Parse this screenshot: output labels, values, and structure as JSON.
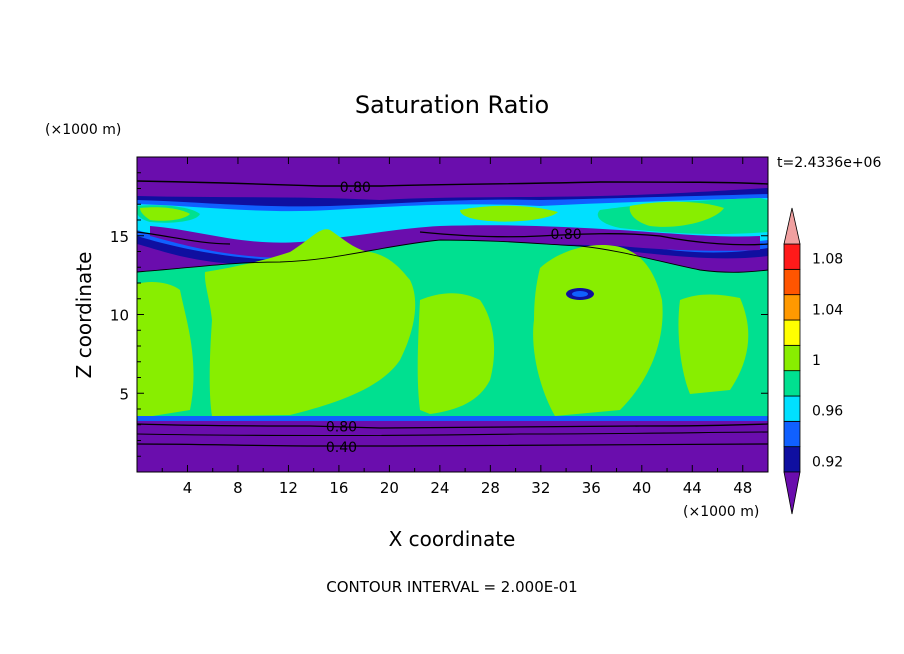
{
  "chart_data": {
    "type": "heatmap",
    "title": "Saturation Ratio",
    "xlabel": "X coordinate",
    "ylabel": "Z coordinate",
    "x_unit": "(×1000 m)",
    "y_unit": "(×1000 m)",
    "xlim": [
      0,
      50
    ],
    "ylim": [
      0,
      20
    ],
    "x_ticks": [
      4,
      8,
      12,
      16,
      20,
      24,
      28,
      32,
      36,
      40,
      44,
      48
    ],
    "y_ticks": [
      5,
      10,
      15
    ],
    "time_label": "t=2.4336e+06",
    "footer": "CONTOUR INTERVAL = 2.000E-01",
    "contour_labels": [
      {
        "text": "0.80",
        "x": 17.3,
        "z": 18.1
      },
      {
        "text": "0.80",
        "x": 34.0,
        "z": 15.1
      },
      {
        "text": "0.80",
        "x": 16.2,
        "z": 2.9
      },
      {
        "text": "0.40",
        "x": 16.2,
        "z": 1.6
      }
    ],
    "colorbar": {
      "labels": [
        "1.08",
        "1.04",
        "1",
        "0.96",
        "0.92"
      ],
      "levels": [
        0.92,
        0.94,
        0.96,
        0.98,
        1.0,
        1.02,
        1.04,
        1.06,
        1.08,
        1.1
      ],
      "colors": [
        "#6a0dad",
        "#0f0fa0",
        "#1060ff",
        "#00e0ff",
        "#00e090",
        "#88ee00",
        "#ffff00",
        "#ff9900",
        "#ff5500",
        "#ff1a1a",
        "#f0a0a0"
      ]
    },
    "field_bands": [
      {
        "z_range": [
          0,
          3.5
        ],
        "value": "below 0.92",
        "color": "#6a0dad"
      },
      {
        "z_range": [
          3.5,
          13.5
        ],
        "value": "0.98 to 1.02",
        "colors": [
          "#00e090",
          "#88ee00"
        ]
      },
      {
        "z_range": [
          13.5,
          17.5
        ],
        "value": "0.92 to 1.02 mixed",
        "colors": [
          "#6a0dad",
          "#0f0fa0",
          "#1060ff",
          "#00e0ff",
          "#00e090",
          "#88ee00"
        ]
      },
      {
        "z_range": [
          17.5,
          20
        ],
        "value": "below 0.92",
        "color": "#6a0dad"
      }
    ]
  }
}
